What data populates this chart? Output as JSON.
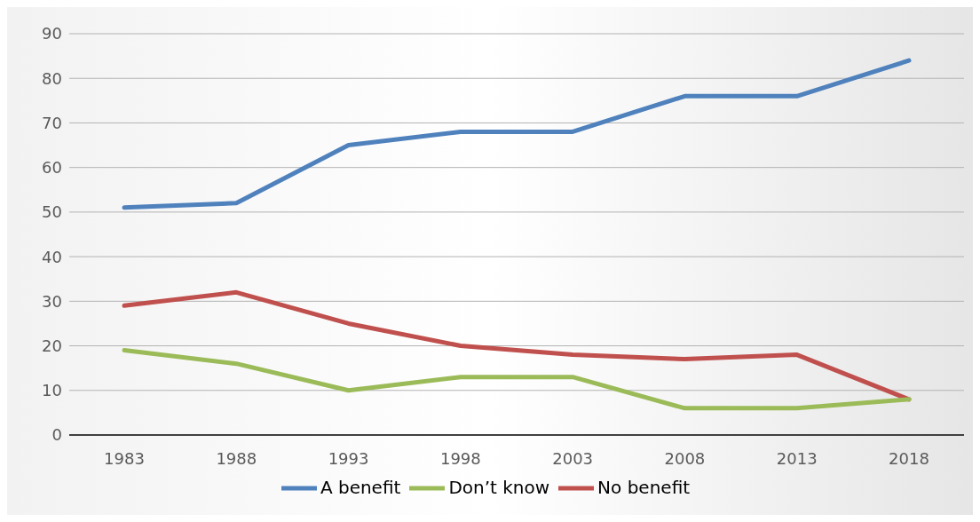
{
  "chart_data": {
    "type": "line",
    "categories": [
      "1983",
      "1988",
      "1993",
      "1998",
      "2003",
      "2008",
      "2013",
      "2018"
    ],
    "series": [
      {
        "name": "A benefit",
        "color": "#4f81bd",
        "values": [
          51,
          52,
          65,
          68,
          68,
          76,
          76,
          84
        ]
      },
      {
        "name": "No benefit",
        "color": "#c0504d",
        "values": [
          29,
          32,
          25,
          20,
          18,
          17,
          18,
          8
        ]
      },
      {
        "name": "Don’t know",
        "color": "#9bbb59",
        "values": [
          19,
          16,
          10,
          13,
          13,
          6,
          6,
          8
        ]
      }
    ],
    "ylim": [
      0,
      90
    ],
    "yticks": [
      0,
      10,
      20,
      30,
      40,
      50,
      60,
      70,
      80,
      90
    ],
    "grid": "y",
    "legend": "bottom",
    "marker": "none",
    "line_style": "solid"
  }
}
